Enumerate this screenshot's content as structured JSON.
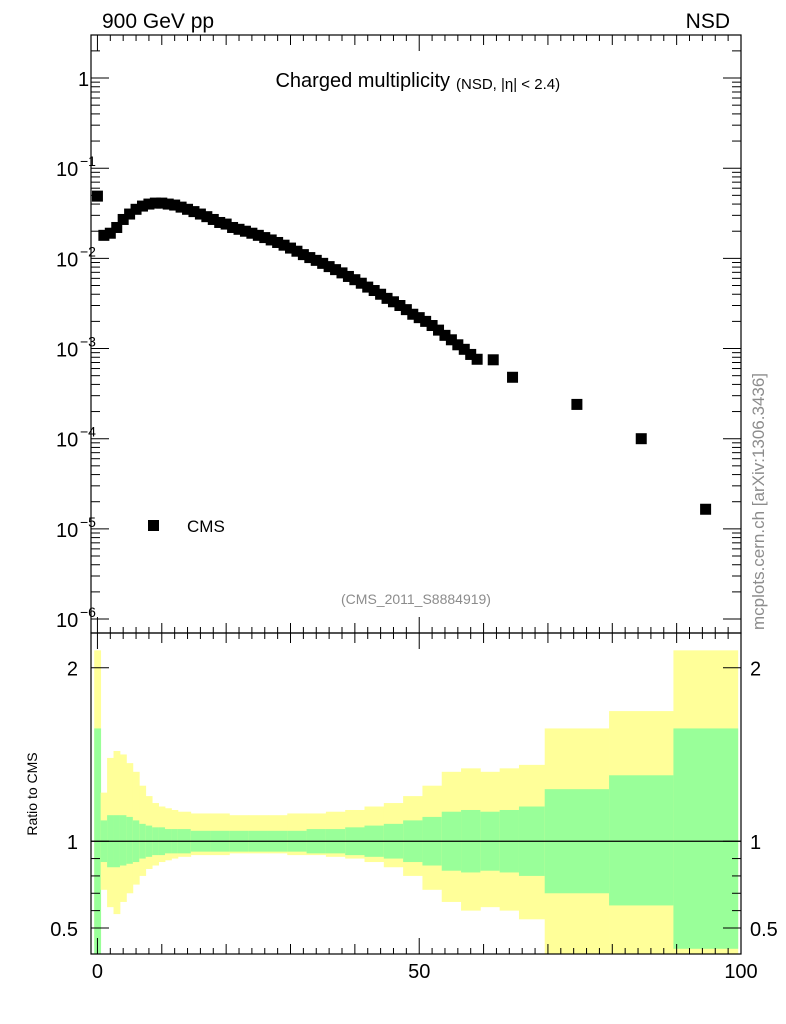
{
  "header": {
    "left": "900 GeV pp",
    "right": "NSD"
  },
  "side_label": "mcplots.cern.ch [arXiv:1306.3436]",
  "chart_data": [
    {
      "type": "scatter",
      "title": "Charged multiplicity",
      "title_suffix": "(NSD, |η| < 2.4)",
      "watermark": "(CMS_2011_S8884919)",
      "yscale": "log",
      "xlim": [
        -1,
        100
      ],
      "ylim": [
        7e-07,
        3
      ],
      "y_ticks": [
        {
          "value": 1,
          "label": "1"
        },
        {
          "value": 0.1,
          "label": "10",
          "exp": "−1"
        },
        {
          "value": 0.01,
          "label": "10",
          "exp": "−2"
        },
        {
          "value": 0.001,
          "label": "10",
          "exp": "−3"
        },
        {
          "value": 0.0001,
          "label": "10",
          "exp": "−4"
        },
        {
          "value": 1e-05,
          "label": "10",
          "exp": "−5"
        },
        {
          "value": 1e-06,
          "label": "10",
          "exp": "−6"
        }
      ],
      "legend": {
        "position": "bottom-left",
        "entries": [
          "CMS"
        ]
      },
      "series": [
        {
          "name": "CMS",
          "marker": "square",
          "color": "#000000",
          "points": [
            [
              0,
              0.049
            ],
            [
              1,
              0.018
            ],
            [
              2,
              0.019
            ],
            [
              3,
              0.022
            ],
            [
              4,
              0.027
            ],
            [
              5,
              0.031
            ],
            [
              6,
              0.035
            ],
            [
              7,
              0.038
            ],
            [
              8,
              0.04
            ],
            [
              9,
              0.041
            ],
            [
              10,
              0.041
            ],
            [
              11,
              0.04
            ],
            [
              12,
              0.039
            ],
            [
              13,
              0.037
            ],
            [
              14,
              0.035
            ],
            [
              15,
              0.033
            ],
            [
              16,
              0.031
            ],
            [
              17,
              0.029
            ],
            [
              18,
              0.027
            ],
            [
              19,
              0.025
            ],
            [
              20,
              0.024
            ],
            [
              21,
              0.022
            ],
            [
              22,
              0.021
            ],
            [
              23,
              0.02
            ],
            [
              24,
              0.019
            ],
            [
              25,
              0.018
            ],
            [
              26,
              0.017
            ],
            [
              27,
              0.016
            ],
            [
              28,
              0.015
            ],
            [
              29,
              0.014
            ],
            [
              30,
              0.013
            ],
            [
              31,
              0.012
            ],
            [
              32,
              0.011
            ],
            [
              33,
              0.0102
            ],
            [
              34,
              0.0095
            ],
            [
              35,
              0.0088
            ],
            [
              36,
              0.0081
            ],
            [
              37,
              0.0075
            ],
            [
              38,
              0.0069
            ],
            [
              39,
              0.0063
            ],
            [
              40,
              0.0058
            ],
            [
              41,
              0.0053
            ],
            [
              42,
              0.0048
            ],
            [
              43,
              0.0044
            ],
            [
              44,
              0.004
            ],
            [
              45,
              0.0036
            ],
            [
              46,
              0.0033
            ],
            [
              47,
              0.003
            ],
            [
              48,
              0.0027
            ],
            [
              49,
              0.0024
            ],
            [
              50,
              0.0022
            ],
            [
              51,
              0.002
            ],
            [
              52,
              0.0018
            ],
            [
              53,
              0.0016
            ],
            [
              54,
              0.0014
            ],
            [
              55,
              0.00125
            ],
            [
              56,
              0.0011
            ],
            [
              57,
              0.00098
            ],
            [
              58,
              0.00086
            ],
            [
              59,
              0.00076
            ],
            [
              61.5,
              0.00075
            ],
            [
              64.5,
              0.00048
            ],
            [
              74.5,
              0.00024
            ],
            [
              84.5,
              0.0001
            ],
            [
              94.5,
              1.65e-05
            ]
          ]
        }
      ]
    },
    {
      "type": "area",
      "ylabel": "Ratio to CMS",
      "xlim": [
        -1,
        100
      ],
      "ylim": [
        0.35,
        2.2
      ],
      "x_ticks": [
        0,
        50,
        100
      ],
      "y_ticks": [
        {
          "value": 0.5,
          "label": "0.5"
        },
        {
          "value": 1,
          "label": "1"
        },
        {
          "value": 2,
          "label": "2"
        }
      ],
      "reference_line": 1,
      "bands": {
        "outer_color": "#ffff99",
        "inner_color": "#99ff99",
        "edges": [
          -0.5,
          0.5,
          1.5,
          2.5,
          3.5,
          4.5,
          5.5,
          6.5,
          7.5,
          8.5,
          9.5,
          10.5,
          11.5,
          12.5,
          14.5,
          17.5,
          20.5,
          23.5,
          26.5,
          29.5,
          32.5,
          35.5,
          38.5,
          41.5,
          44.5,
          47.5,
          50.5,
          53.5,
          56.5,
          59.5,
          62.5,
          65.5,
          69.5,
          79.5,
          89.5,
          99.5
        ],
        "outer_hi": [
          2.1,
          1.28,
          1.48,
          1.52,
          1.5,
          1.45,
          1.4,
          1.32,
          1.26,
          1.22,
          1.2,
          1.19,
          1.18,
          1.17,
          1.16,
          1.16,
          1.15,
          1.15,
          1.15,
          1.16,
          1.16,
          1.17,
          1.18,
          1.2,
          1.22,
          1.26,
          1.32,
          1.4,
          1.42,
          1.4,
          1.42,
          1.44,
          1.65,
          1.75,
          2.1
        ],
        "outer_lo": [
          0.4,
          0.72,
          0.62,
          0.58,
          0.65,
          0.7,
          0.75,
          0.8,
          0.84,
          0.86,
          0.88,
          0.89,
          0.9,
          0.91,
          0.92,
          0.92,
          0.93,
          0.93,
          0.93,
          0.92,
          0.92,
          0.91,
          0.9,
          0.88,
          0.85,
          0.8,
          0.72,
          0.65,
          0.6,
          0.62,
          0.6,
          0.55,
          0.35,
          0.25,
          0.15
        ],
        "inner_hi": [
          1.65,
          1.12,
          1.15,
          1.15,
          1.15,
          1.14,
          1.12,
          1.1,
          1.09,
          1.08,
          1.08,
          1.07,
          1.07,
          1.07,
          1.06,
          1.06,
          1.06,
          1.06,
          1.06,
          1.06,
          1.07,
          1.07,
          1.08,
          1.09,
          1.1,
          1.12,
          1.14,
          1.17,
          1.18,
          1.17,
          1.18,
          1.2,
          1.3,
          1.38,
          1.65
        ],
        "inner_lo": [
          0.35,
          0.88,
          0.85,
          0.85,
          0.86,
          0.87,
          0.88,
          0.9,
          0.91,
          0.92,
          0.92,
          0.93,
          0.93,
          0.93,
          0.94,
          0.94,
          0.94,
          0.94,
          0.94,
          0.94,
          0.93,
          0.93,
          0.92,
          0.91,
          0.9,
          0.88,
          0.86,
          0.83,
          0.82,
          0.83,
          0.82,
          0.8,
          0.7,
          0.63,
          0.38
        ]
      }
    }
  ]
}
